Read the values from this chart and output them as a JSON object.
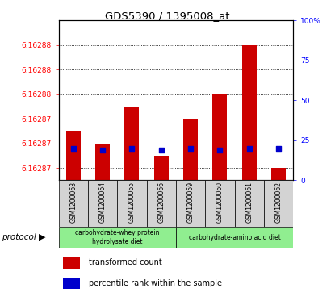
{
  "title": "GDS5390 / 1395008_at",
  "samples": [
    "GSM1200063",
    "GSM1200064",
    "GSM1200065",
    "GSM1200066",
    "GSM1200059",
    "GSM1200060",
    "GSM1200061",
    "GSM1200062"
  ],
  "transformed_counts": [
    6.162873,
    6.162872,
    6.162875,
    6.162871,
    6.162874,
    6.162876,
    6.16288,
    6.16287
  ],
  "percentile_ranks": [
    20,
    19,
    20,
    19,
    20,
    19,
    20,
    20
  ],
  "y_min": 6.162869,
  "y_max": 6.162882,
  "ytick_values": [
    6.16287,
    6.162872,
    6.162874,
    6.162876,
    6.162878,
    6.16288
  ],
  "ytick_labels": [
    "6.16287",
    "6.16287",
    "6.16287",
    "6.16288",
    "6.16288",
    "6.16288"
  ],
  "right_y_ticks": [
    0,
    25,
    50,
    75,
    100
  ],
  "right_y_labels": [
    "0",
    "25",
    "50",
    "75",
    "100%"
  ],
  "bar_color": "#cc0000",
  "dot_color": "#0000cc",
  "group1_label": "carbohydrate-whey protein\nhydrolysate diet",
  "group2_label": "carbohydrate-amino acid diet",
  "group1_bg": "#90ee90",
  "group2_bg": "#90ee90",
  "sample_bg": "#d3d3d3",
  "protocol_label": "protocol",
  "legend_tc": "transformed count",
  "legend_pr": "percentile rank within the sample",
  "base_value": 6.162869,
  "bar_width": 0.5
}
